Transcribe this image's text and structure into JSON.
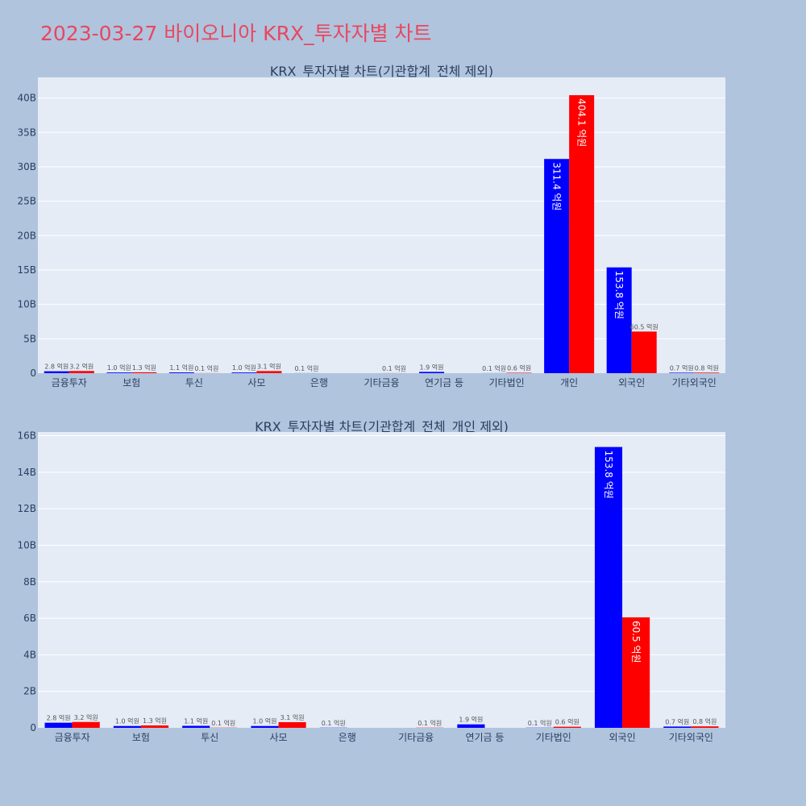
{
  "page": {
    "title": "2023-03-27 바이오니아 KRX_투자자별 차트"
  },
  "colors": {
    "buy": "#0000ff",
    "sell": "#ff0000",
    "plot_bg": "#e5ecf6",
    "page_bg": "#b0c4de"
  },
  "chart_data": [
    {
      "type": "bar",
      "title": "KRX_투자자별 차트(기관합계_전체 제외)",
      "categories": [
        "금융투자",
        "보험",
        "투신",
        "사모",
        "은행",
        "기타금융",
        "연기금 등",
        "기타법인",
        "개인",
        "외국인",
        "기타외국인"
      ],
      "series": [
        {
          "values": [
            280000000,
            100000000,
            110000000,
            100000000,
            10000000,
            0,
            190000000,
            10000000,
            31140000000,
            15380000000,
            70000000
          ],
          "labels": [
            "2.8 억원",
            "1.0 억원",
            "1.1 억원",
            "1.0 억원",
            "0.1 억원",
            "",
            "1.9 억원",
            "0.1 억원",
            "311.4 억원",
            "153.8 억원",
            "0.7 억원"
          ]
        },
        {
          "values": [
            320000000,
            130000000,
            10000000,
            310000000,
            0,
            10000000,
            0,
            60000000,
            40410000000,
            6050000000,
            80000000
          ],
          "labels": [
            "3.2 억원",
            "1.3 억원",
            "0.1 억원",
            "3.1 억원",
            "",
            "0.1 억원",
            "",
            "0.6 억원",
            "404.1 억원",
            "60.5 억원",
            "0.8 억원"
          ]
        }
      ],
      "ylim": [
        0,
        43000000000
      ],
      "yticks": [
        0,
        5000000000,
        10000000000,
        15000000000,
        20000000000,
        25000000000,
        30000000000,
        35000000000,
        40000000000
      ],
      "ytick_labels": [
        "0",
        "5B",
        "10B",
        "15B",
        "20B",
        "25B",
        "30B",
        "35B",
        "40B"
      ],
      "grid": true
    },
    {
      "type": "bar",
      "title": "KRX_투자자별 차트(기관합계_전체_개인 제외)",
      "categories": [
        "금융투자",
        "보험",
        "투신",
        "사모",
        "은행",
        "기타금융",
        "연기금 등",
        "기타법인",
        "외국인",
        "기타외국인"
      ],
      "series": [
        {
          "values": [
            280000000,
            100000000,
            110000000,
            100000000,
            10000000,
            0,
            190000000,
            10000000,
            15380000000,
            70000000
          ],
          "labels": [
            "2.8 억원",
            "1.0 억원",
            "1.1 억원",
            "1.0 억원",
            "0.1 억원",
            "",
            "1.9 억원",
            "0.1 억원",
            "153.8 억원",
            "0.7 억원"
          ]
        },
        {
          "values": [
            320000000,
            130000000,
            10000000,
            310000000,
            0,
            10000000,
            0,
            60000000,
            6050000000,
            80000000
          ],
          "labels": [
            "3.2 억원",
            "1.3 억원",
            "0.1 억원",
            "3.1 억원",
            "",
            "0.1 억원",
            "",
            "0.6 억원",
            "60.5 억원",
            "0.8 억원"
          ]
        }
      ],
      "ylim": [
        0,
        16200000000
      ],
      "yticks": [
        0,
        2000000000,
        4000000000,
        6000000000,
        8000000000,
        10000000000,
        12000000000,
        14000000000,
        16000000000
      ],
      "ytick_labels": [
        "0",
        "2B",
        "4B",
        "6B",
        "8B",
        "10B",
        "12B",
        "14B",
        "16B"
      ],
      "grid": true
    }
  ]
}
